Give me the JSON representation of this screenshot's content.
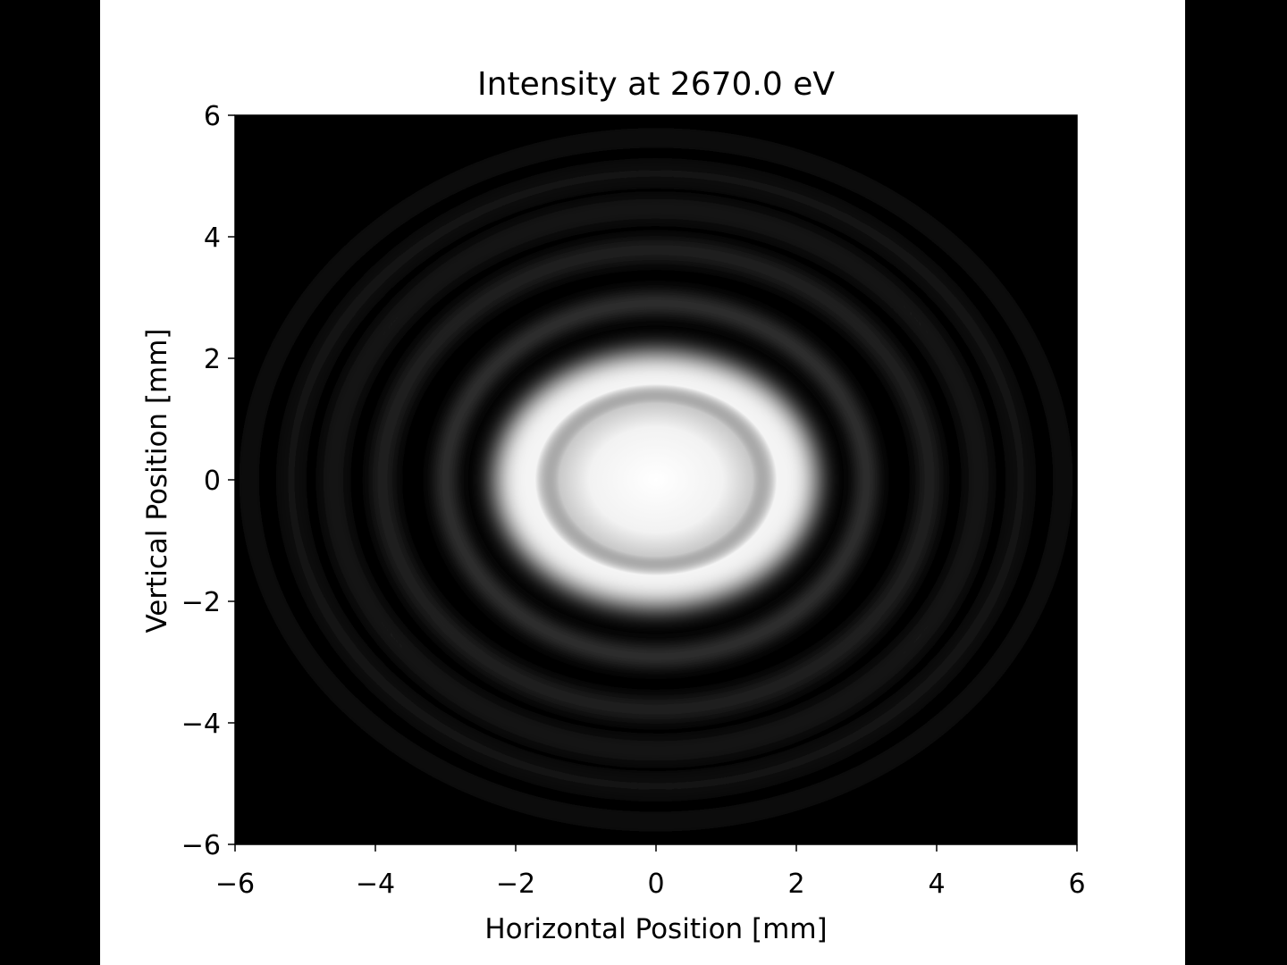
{
  "chart_data": {
    "type": "heatmap",
    "title": "Intensity at 2670.0 eV",
    "xlabel": "Horizontal Position [mm]",
    "ylabel": "Vertical Position [mm]",
    "xlim": [
      -6,
      6
    ],
    "ylim": [
      -6,
      6
    ],
    "xticks": [
      -6,
      -4,
      -2,
      0,
      2,
      4,
      6
    ],
    "yticks": [
      -6,
      -4,
      -2,
      0,
      2,
      4,
      6
    ],
    "xtick_labels": [
      "−6",
      "−4",
      "−2",
      "0",
      "2",
      "4",
      "6"
    ],
    "ytick_labels": [
      "−6",
      "−4",
      "−2",
      "0",
      "2",
      "4",
      "6"
    ],
    "colormap": "gray",
    "grid": false,
    "central_spot": {
      "center": [
        0,
        0
      ],
      "radius_x_mm": 2.3,
      "radius_y_mm": 2.1,
      "peak_intensity": 1.0
    },
    "rings": [
      {
        "radius_mm": 3.0,
        "relative_intensity": 0.22
      },
      {
        "radius_mm": 3.9,
        "relative_intensity": 0.15
      },
      {
        "radius_mm": 4.6,
        "relative_intensity": 0.11
      },
      {
        "radius_mm": 5.2,
        "relative_intensity": 0.08
      },
      {
        "radius_mm": 5.8,
        "relative_intensity": 0.06
      }
    ]
  }
}
